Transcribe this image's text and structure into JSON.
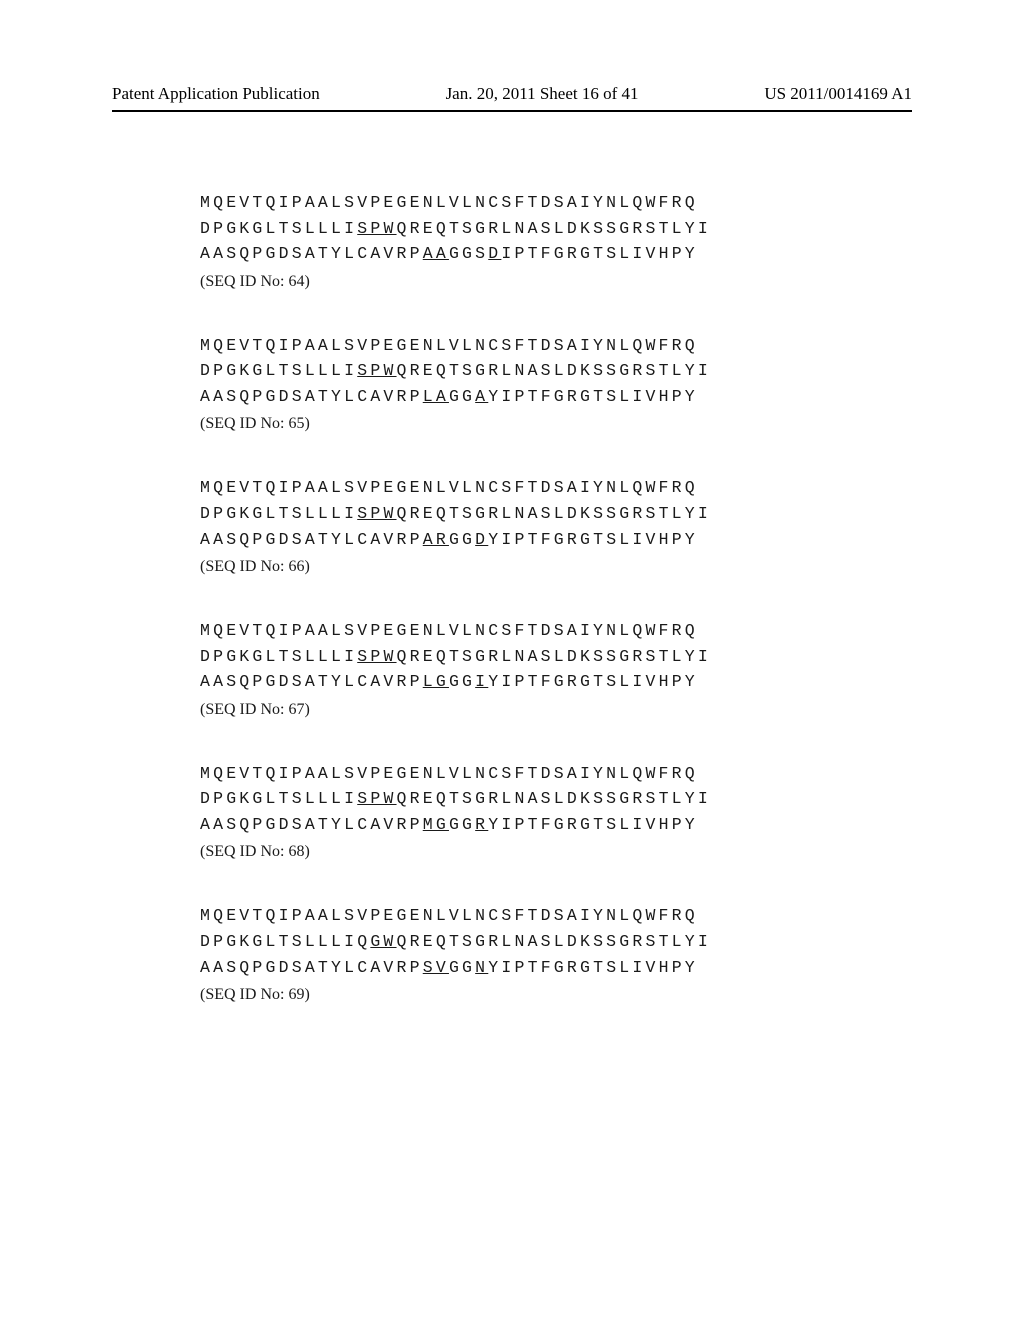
{
  "header": {
    "left": "Patent Application Publication",
    "center": "Jan. 20, 2011  Sheet 16 of 41",
    "right": "US 2011/0014169 A1"
  },
  "sequences": [
    {
      "line1": "MQEVTQIPAALSVPEGENLVLNCSFTDSAIYNLQWFRQ",
      "line2_parts": [
        "DPGKGLTSLLLI",
        "SPW",
        "QREQTSGRLNASLDKSSGRSTLYI"
      ],
      "line3_parts": [
        "AASQPGDSATYLCAVRP",
        "AA",
        "GGS",
        "D",
        "IPTFGRGTSLIVHPY"
      ],
      "seq_id": "(SEQ ID No: 64)"
    },
    {
      "line1": "MQEVTQIPAALSVPEGENLVLNCSFTDSAIYNLQWFRQ",
      "line2_parts": [
        "DPGKGLTSLLLI",
        "SPW",
        "QREQTSGRLNASLDKSSGRSTLYI"
      ],
      "line3_parts": [
        "AASQPGDSATYLCAVRP",
        "LA",
        "GG",
        "A",
        "YIPTFGRGTSLIVHPY"
      ],
      "seq_id": "(SEQ ID No: 65)"
    },
    {
      "line1": "MQEVTQIPAALSVPEGENLVLNCSFTDSAIYNLQWFRQ",
      "line2_parts": [
        "DPGKGLTSLLLI",
        "SPW",
        "QREQTSGRLNASLDKSSGRSTLYI"
      ],
      "line3_parts": [
        "AASQPGDSATYLCAVRP",
        "AR",
        "GG",
        "D",
        "YIPTFGRGTSLIVHPY"
      ],
      "seq_id": "(SEQ ID No: 66)"
    },
    {
      "line1": "MQEVTQIPAALSVPEGENLVLNCSFTDSAIYNLQWFRQ",
      "line2_parts": [
        "DPGKGLTSLLLI",
        "SPW",
        "QREQTSGRLNASLDKSSGRSTLYI"
      ],
      "line3_parts": [
        "AASQPGDSATYLCAVRP",
        "LG",
        "GG",
        "I",
        "YIPTFGRGTSLIVHPY"
      ],
      "seq_id": "(SEQ ID No: 67)"
    },
    {
      "line1": "MQEVTQIPAALSVPEGENLVLNCSFTDSAIYNLQWFRQ",
      "line2_parts": [
        "DPGKGLTSLLLI",
        "SPW",
        "QREQTSGRLNASLDKSSGRSTLYI"
      ],
      "line3_parts": [
        "AASQPGDSATYLCAVRP",
        "MG",
        "GG",
        "R",
        "YIPTFGRGTSLIVHPY"
      ],
      "seq_id": "(SEQ ID No: 68)"
    },
    {
      "line1": "MQEVTQIPAALSVPEGENLVLNCSFTDSAIYNLQWFRQ",
      "line2_parts": [
        "DPGKGLTSLLLIQ",
        "GW",
        "QREQTSGRLNASLDKSSGRSTLYI"
      ],
      "line3_parts": [
        "AASQPGDSATYLCAVRP",
        "SV",
        "GG",
        "N",
        "YIPTFGRGTSLIVHPY"
      ],
      "seq_id": "(SEQ ID No: 69)"
    }
  ]
}
